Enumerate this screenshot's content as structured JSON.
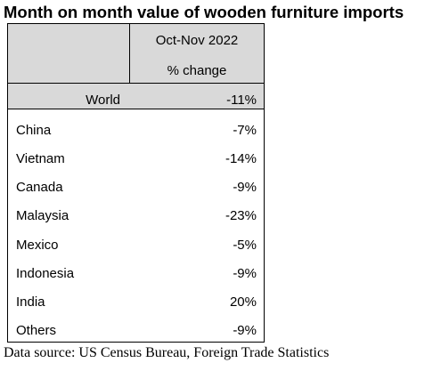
{
  "title": "Month on month value of wooden furniture imports",
  "source": "Data source: US Census Bureau, Foreign Trade Statistics",
  "colors": {
    "header_fill": "#d9d9d9",
    "border": "#000000"
  },
  "chart_data": {
    "type": "table",
    "title": "Month on month value of wooden furniture imports",
    "columns": [
      "",
      "Oct-Nov 2022 % change"
    ],
    "header": {
      "period": "Oct-Nov 2022",
      "measure": "% change"
    },
    "total": {
      "name": "World",
      "label": "-11%",
      "value": -11
    },
    "rows": [
      {
        "name": "China",
        "label": "-7%",
        "value": -7
      },
      {
        "name": "Vietnam",
        "label": "-14%",
        "value": -14
      },
      {
        "name": "Canada",
        "label": "-9%",
        "value": -9
      },
      {
        "name": "Malaysia",
        "label": "-23%",
        "value": -23
      },
      {
        "name": "Mexico",
        "label": "-5%",
        "value": -5
      },
      {
        "name": "Indonesia",
        "label": "-9%",
        "value": -9
      },
      {
        "name": "India",
        "label": "20%",
        "value": 20
      },
      {
        "name": "Others",
        "label": "-9%",
        "value": -9
      }
    ]
  }
}
